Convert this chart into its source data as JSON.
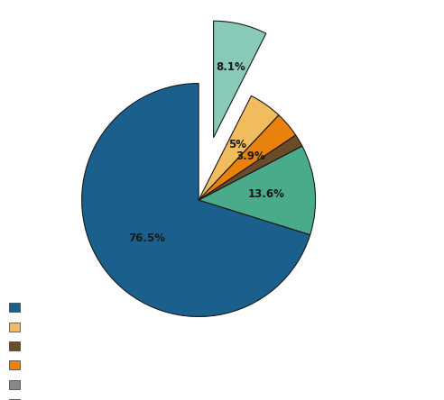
{
  "slices": [
    76.5,
    13.6,
    1.9,
    3.9,
    5.0,
    8.1
  ],
  "labels": [
    "76.5%",
    "13.6%",
    "",
    "3.9%",
    "5%",
    "8.1%"
  ],
  "colors": [
    "#1b5f8c",
    "#4aab8a",
    "#6b4c2a",
    "#e8820c",
    "#f0bc5e",
    "#89c9b8"
  ],
  "explode": [
    0,
    0,
    0,
    0,
    0,
    0.55
  ],
  "legend_colors": [
    "#1b5f8c",
    "#f0bc5e",
    "#6b4c2a",
    "#e8820c",
    "#888888",
    "#4aab8a"
  ],
  "startangle": 90,
  "background_color": "#ffffff"
}
